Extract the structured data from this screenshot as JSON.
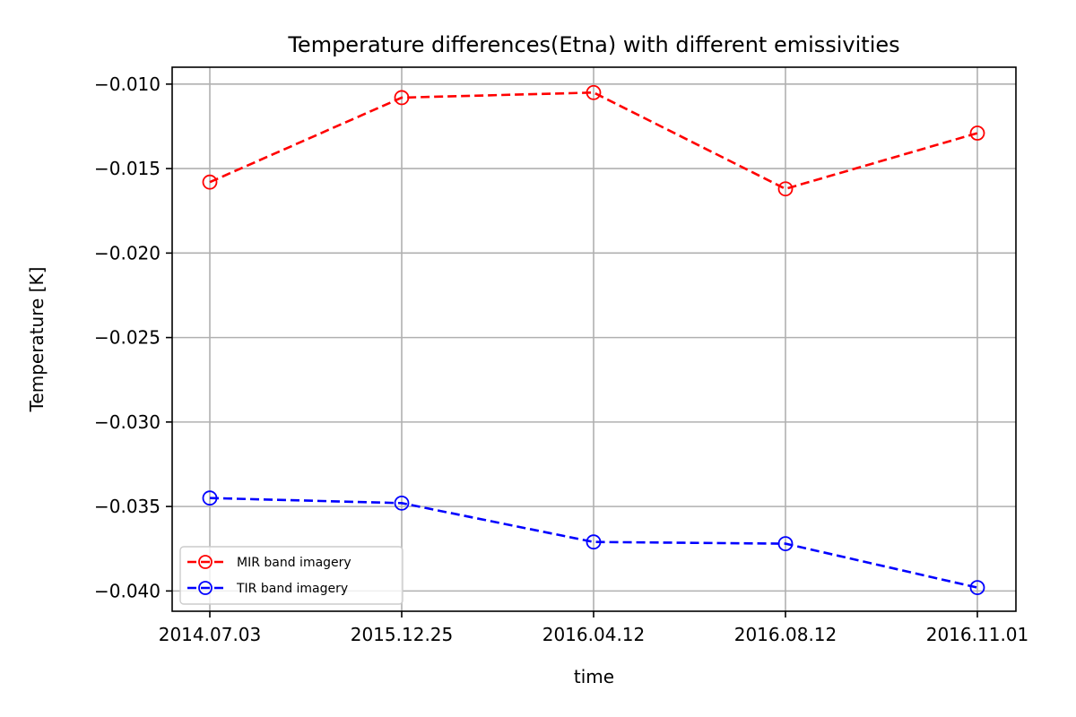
{
  "chart_data": {
    "type": "line",
    "title": "Temperature differences(Etna) with different emissivities",
    "xlabel": "time",
    "ylabel": "Temperature [K]",
    "categories": [
      "2014.07.03",
      "2015.12.25",
      "2016.04.12",
      "2016.08.12",
      "2016.11.01"
    ],
    "ylim": [
      -0.0412,
      -0.009
    ],
    "yticks": [
      -0.01,
      -0.015,
      -0.02,
      -0.025,
      -0.03,
      -0.035,
      -0.04
    ],
    "ytick_labels": [
      "−0.010",
      "−0.015",
      "−0.020",
      "−0.025",
      "−0.030",
      "−0.035",
      "−0.040"
    ],
    "grid": true,
    "legend_position": "lower-left",
    "series": [
      {
        "name": "MIR band imagery",
        "color": "#ff0000",
        "line_style": "dashed",
        "marker": "open-circle",
        "values": [
          -0.0158,
          -0.0108,
          -0.0105,
          -0.0162,
          -0.0129
        ]
      },
      {
        "name": "TIR band imagery",
        "color": "#0000ff",
        "line_style": "dashed",
        "marker": "open-circle",
        "values": [
          -0.0345,
          -0.0348,
          -0.0371,
          -0.0372,
          -0.0398
        ]
      }
    ]
  }
}
